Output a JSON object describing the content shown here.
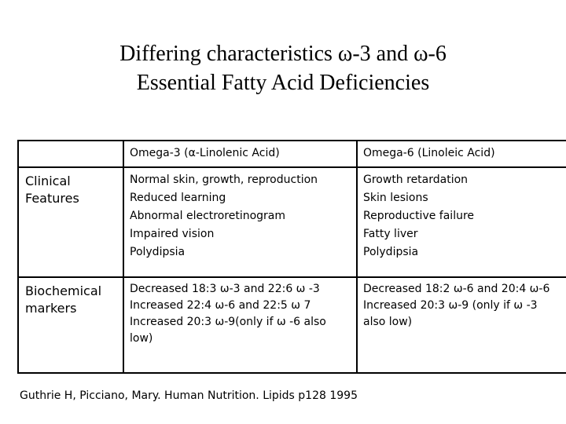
{
  "title": {
    "line1": "Differing characteristics ω-3 and ω-6",
    "line2": "Essential Fatty Acid Deficiencies"
  },
  "table": {
    "headers": [
      "",
      "Omega-3 (α-Linolenic Acid)",
      "Omega-6 (Linoleic Acid)"
    ],
    "rows": [
      {
        "label": "Clinical Features",
        "omega3": [
          "Normal skin, growth, reproduction",
          "Reduced learning",
          "Abnormal electroretinogram",
          "Impaired vision",
          "Polydipsia"
        ],
        "omega6": [
          "Growth retardation",
          "Skin lesions",
          "Reproductive failure",
          "Fatty liver",
          "Polydipsia"
        ]
      },
      {
        "label": "Biochemical markers",
        "omega3": [
          "Decreased 18:3 ω-3 and 22:6 ω -3",
          "Increased 22:4 ω-6 and 22:5 ω 7",
          "Increased 20:3 ω-9(only if ω -6 also low)"
        ],
        "omega6": [
          "Decreased 18:2 ω-6 and 20:4 ω-6",
          "Increased 20:3 ω-9 (only if ω -3 also low)"
        ]
      }
    ]
  },
  "citation": "Guthrie H, Picciano, Mary.  Human Nutrition. Lipids p128 1995"
}
